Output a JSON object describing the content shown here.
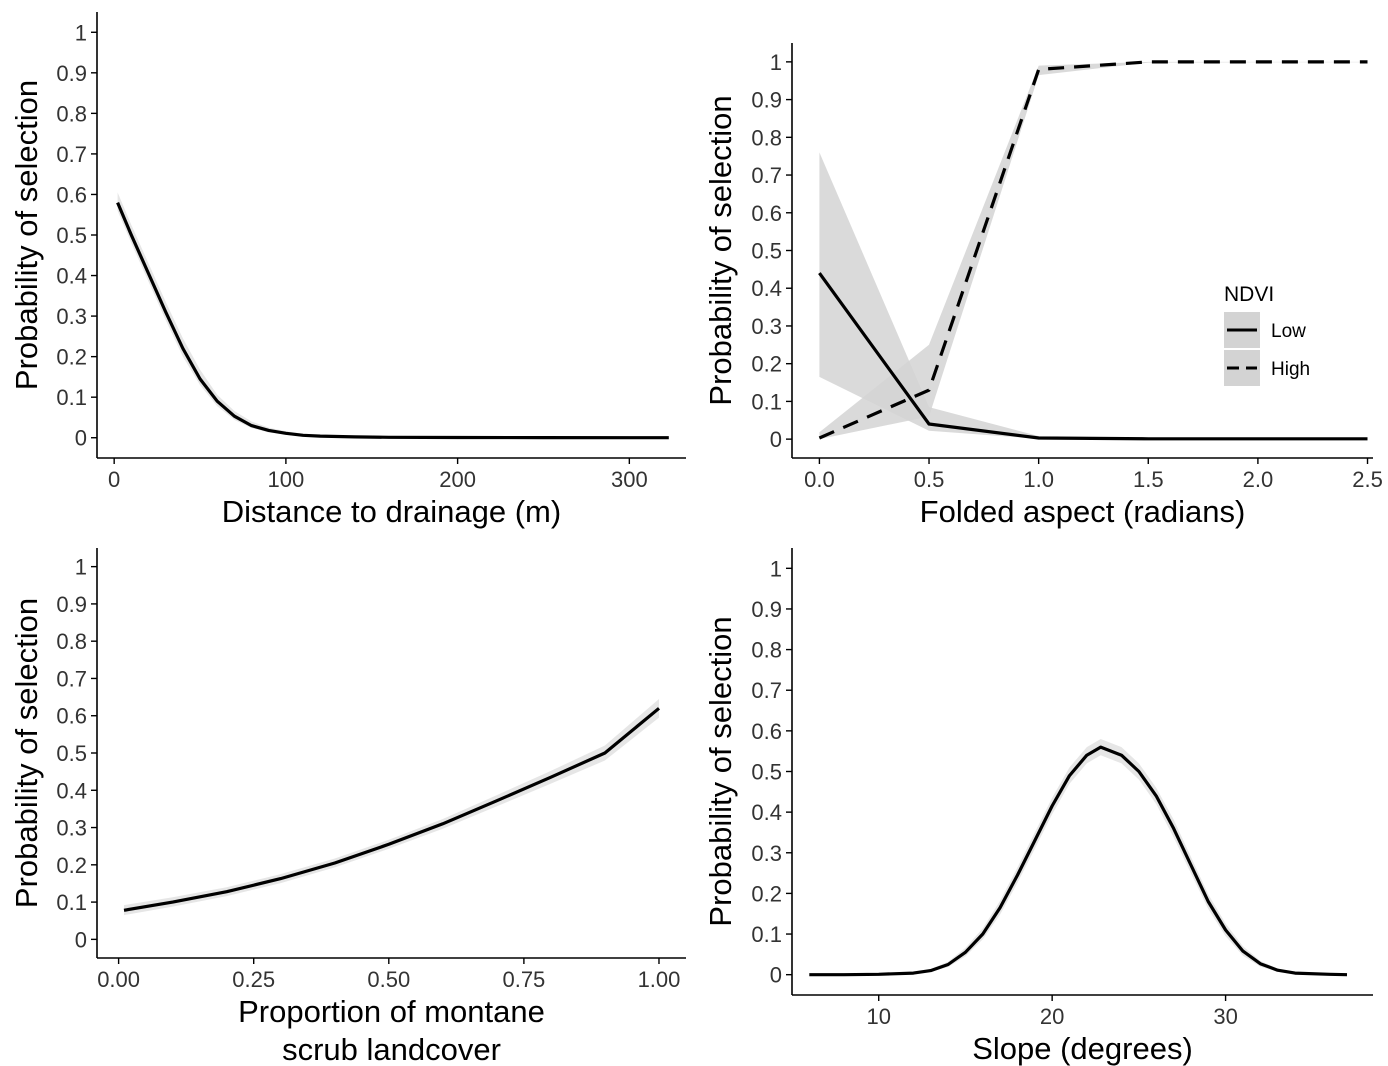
{
  "colors": {
    "line": "#000000",
    "ribbon": "#d3d3d3",
    "ribbon_light": "#e6e6e6",
    "axis": "#000000",
    "tick_text": "#333333"
  },
  "chart_data": [
    {
      "type": "line",
      "xlabel": "Distance to drainage (m)",
      "ylabel": "Probability of selection",
      "xlim": [
        -10,
        333
      ],
      "ylim": [
        -0.05,
        1.05
      ],
      "xticks": [
        0,
        100,
        200,
        300
      ],
      "xtick_labels": [
        "0",
        "100",
        "200",
        "300"
      ],
      "yticks": [
        0,
        0.1,
        0.2,
        0.3,
        0.4,
        0.5,
        0.6,
        0.7,
        0.8,
        0.9,
        1
      ],
      "ytick_labels": [
        "0",
        "0.1",
        "0.2",
        "0.3",
        "0.4",
        "0.5",
        "0.6",
        "0.7",
        "0.8",
        "0.9",
        "1"
      ],
      "grid": false,
      "series": [
        {
          "line_style": "solid",
          "x": [
            2,
            10,
            20,
            30,
            40,
            50,
            60,
            70,
            80,
            90,
            100,
            110,
            120,
            140,
            160,
            200,
            250,
            300,
            323
          ],
          "y": [
            0.58,
            0.5,
            0.405,
            0.31,
            0.22,
            0.145,
            0.09,
            0.053,
            0.03,
            0.018,
            0.011,
            0.006,
            0.004,
            0.002,
            0.001,
            0.0005,
            0.0002,
            0.0001,
            0
          ],
          "lower": [
            0.56,
            0.48,
            0.385,
            0.29,
            0.2,
            0.13,
            0.078,
            0.044,
            0.024,
            0.013,
            0.008,
            0.004,
            0.002,
            0.001,
            0,
            0,
            0,
            0,
            0
          ],
          "upper": [
            0.605,
            0.525,
            0.43,
            0.335,
            0.245,
            0.168,
            0.106,
            0.066,
            0.04,
            0.025,
            0.016,
            0.01,
            0.007,
            0.004,
            0.002,
            0.001,
            0.0005,
            0.0003,
            0.0002
          ]
        }
      ]
    },
    {
      "type": "line",
      "xlabel": "Folded aspect (radians)",
      "ylabel": "Probability of selection",
      "xlim": [
        -0.125,
        2.525
      ],
      "ylim": [
        -0.05,
        1.05
      ],
      "xticks": [
        0,
        0.5,
        1,
        1.5,
        2,
        2.5
      ],
      "xtick_labels": [
        "0.0",
        "0.5",
        "1.0",
        "1.5",
        "2.0",
        "2.5"
      ],
      "yticks": [
        0,
        0.1,
        0.2,
        0.3,
        0.4,
        0.5,
        0.6,
        0.7,
        0.8,
        0.9,
        1
      ],
      "ytick_labels": [
        "0",
        "0.1",
        "0.2",
        "0.3",
        "0.4",
        "0.5",
        "0.6",
        "0.7",
        "0.8",
        "0.9",
        "1"
      ],
      "grid": false,
      "legend": {
        "title": "NDVI",
        "position": "right",
        "entries": [
          "Low",
          "High"
        ]
      },
      "series": [
        {
          "name": "Low",
          "line_style": "solid",
          "x": [
            0,
            0.5,
            1,
            1.5,
            2,
            2.5
          ],
          "y": [
            0.44,
            0.04,
            0.003,
            0.001,
            0.001,
            0.001
          ],
          "lower": [
            0.165,
            0.022,
            0.001,
            0,
            0,
            0
          ],
          "upper": [
            0.76,
            0.085,
            0.008,
            0.003,
            0.002,
            0.002
          ]
        },
        {
          "name": "High",
          "line_style": "dashed",
          "x": [
            0,
            0.5,
            1,
            1.5,
            2,
            2.5
          ],
          "y": [
            0.003,
            0.13,
            0.98,
            1,
            1,
            1
          ],
          "lower": [
            0,
            0.06,
            0.965,
            0.998,
            0.999,
            0.999
          ],
          "upper": [
            0.018,
            0.25,
            0.99,
            1,
            1,
            1
          ]
        }
      ]
    },
    {
      "type": "line",
      "xlabel": "Proportion of montane scrub landcover",
      "xlabel_lines": [
        "Proportion of montane",
        "scrub landcover"
      ],
      "ylabel": "Probability of selection",
      "xlim": [
        -0.04,
        1.05
      ],
      "ylim": [
        -0.05,
        1.05
      ],
      "xticks": [
        0,
        0.25,
        0.5,
        0.75,
        1
      ],
      "xtick_labels": [
        "0.00",
        "0.25",
        "0.50",
        "0.75",
        "1.00"
      ],
      "yticks": [
        0,
        0.1,
        0.2,
        0.3,
        0.4,
        0.5,
        0.6,
        0.7,
        0.8,
        0.9,
        1
      ],
      "ytick_labels": [
        "0",
        "0.1",
        "0.2",
        "0.3",
        "0.4",
        "0.5",
        "0.6",
        "0.7",
        "0.8",
        "0.9",
        "1"
      ],
      "grid": false,
      "series": [
        {
          "line_style": "solid",
          "x": [
            0.01,
            0.1,
            0.2,
            0.3,
            0.4,
            0.5,
            0.6,
            0.7,
            0.8,
            0.9,
            1
          ],
          "y": [
            0.078,
            0.1,
            0.128,
            0.163,
            0.205,
            0.255,
            0.31,
            0.372,
            0.435,
            0.5,
            0.62
          ],
          "lower": [
            0.065,
            0.088,
            0.116,
            0.151,
            0.193,
            0.243,
            0.297,
            0.357,
            0.418,
            0.48,
            0.595
          ],
          "upper": [
            0.092,
            0.113,
            0.14,
            0.175,
            0.217,
            0.267,
            0.323,
            0.387,
            0.452,
            0.52,
            0.645
          ]
        }
      ]
    },
    {
      "type": "line",
      "xlabel": "Slope (degrees)",
      "ylabel": "Probability of selection",
      "xlim": [
        5,
        38.5
      ],
      "ylim": [
        -0.05,
        1.05
      ],
      "xticks": [
        10,
        20,
        30
      ],
      "xtick_labels": [
        "10",
        "20",
        "30"
      ],
      "yticks": [
        0,
        0.1,
        0.2,
        0.3,
        0.4,
        0.5,
        0.6,
        0.7,
        0.8,
        0.9,
        1
      ],
      "ytick_labels": [
        "0",
        "0.1",
        "0.2",
        "0.3",
        "0.4",
        "0.5",
        "0.6",
        "0.7",
        "0.8",
        "0.9",
        "1"
      ],
      "grid": false,
      "series": [
        {
          "line_style": "solid",
          "x": [
            6,
            8,
            10,
            12,
            13,
            14,
            15,
            16,
            17,
            18,
            19,
            20,
            21,
            22,
            22.8,
            24,
            25,
            26,
            27,
            28,
            29,
            30,
            31,
            32,
            33,
            34,
            36,
            37
          ],
          "y": [
            0,
            0,
            0.001,
            0.004,
            0.01,
            0.025,
            0.055,
            0.1,
            0.165,
            0.245,
            0.33,
            0.415,
            0.49,
            0.54,
            0.56,
            0.54,
            0.5,
            0.44,
            0.36,
            0.27,
            0.18,
            0.11,
            0.058,
            0.027,
            0.011,
            0.004,
            0.001,
            0
          ],
          "lower": [
            0,
            0,
            0,
            0.002,
            0.007,
            0.019,
            0.045,
            0.087,
            0.148,
            0.226,
            0.31,
            0.395,
            0.47,
            0.52,
            0.54,
            0.52,
            0.48,
            0.42,
            0.338,
            0.25,
            0.162,
            0.095,
            0.047,
            0.02,
            0.007,
            0.002,
            0,
            0
          ],
          "upper": [
            0,
            0.001,
            0.002,
            0.006,
            0.014,
            0.032,
            0.066,
            0.114,
            0.182,
            0.264,
            0.35,
            0.435,
            0.51,
            0.56,
            0.58,
            0.56,
            0.52,
            0.46,
            0.382,
            0.29,
            0.198,
            0.126,
            0.07,
            0.034,
            0.015,
            0.006,
            0.002,
            0.001
          ]
        }
      ]
    }
  ]
}
